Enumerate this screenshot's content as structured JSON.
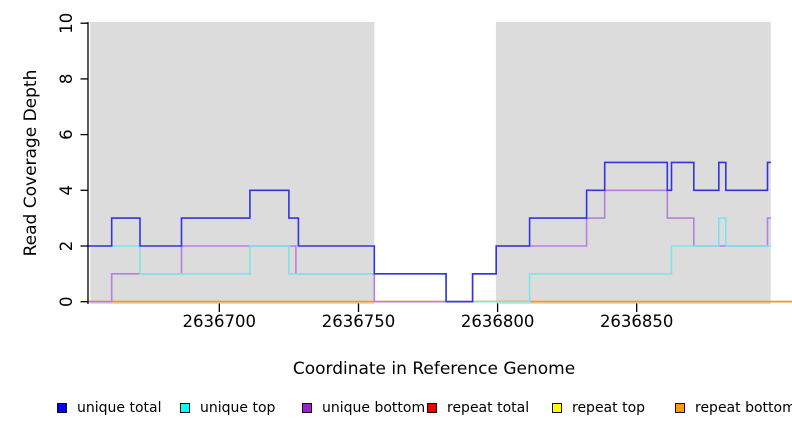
{
  "figure": {
    "y_axis_title": "Read Coverage Depth",
    "x_axis_title": "Coordinate in Reference Genome"
  },
  "chart_data": {
    "type": "line",
    "subtype": "step-post",
    "title": "",
    "xlabel": "Coordinate in Reference Genome",
    "ylabel": "Read Coverage Depth",
    "x_domain": [
      2636652.8,
      2636905.8
    ],
    "ylim": [
      0,
      10
    ],
    "x_ticks": [
      2636700,
      2636750,
      2636800,
      2636850
    ],
    "x_tick_labels": [
      "2636700",
      "2636750",
      "2636800",
      "2636850"
    ],
    "y_ticks": [
      0,
      2,
      4,
      6,
      8,
      10
    ],
    "y_tick_labels": [
      "0",
      "2",
      "4",
      "6",
      "8",
      "10"
    ],
    "grid": "off",
    "plot_background_color": "#dcdcdc",
    "shaded_regions": [
      [
        2636653.6,
        2636755.7
      ],
      [
        2636799.4,
        2636898.2
      ]
    ],
    "series": [
      {
        "name": "repeat total",
        "color": "#dd0000",
        "points": [
          [
            2636652.8,
            0
          ]
        ],
        "end_x": 2636905.8
      },
      {
        "name": "repeat top",
        "color": "#ffff00",
        "points": [
          [
            2636652.8,
            0
          ]
        ],
        "end_x": 2636905.8
      },
      {
        "name": "repeat bottom",
        "color": "#ff9912",
        "points": [
          [
            2636652.8,
            0
          ]
        ],
        "end_x": 2636905.8
      },
      {
        "name": "unique bottom",
        "color": "#b87fdf",
        "points": [
          [
            2636652.8,
            0
          ],
          [
            2636661.3,
            1
          ],
          [
            2636686.4,
            2
          ],
          [
            2636727.5,
            1
          ],
          [
            2636755.7,
            0
          ],
          [
            2636791,
            1
          ],
          [
            2636799.5,
            2
          ],
          [
            2636832,
            3
          ],
          [
            2636838.5,
            4
          ],
          [
            2636861,
            3
          ],
          [
            2636870.5,
            2
          ],
          [
            2636897,
            3
          ]
        ],
        "end_x": 2636898.2
      },
      {
        "name": "unique top",
        "color": "#7ce4ec",
        "points": [
          [
            2636652.8,
            2
          ],
          [
            2636671.5,
            1
          ],
          [
            2636711,
            2
          ],
          [
            2636725,
            1
          ],
          [
            2636781.5,
            0
          ],
          [
            2636811.5,
            1
          ],
          [
            2636862.5,
            2
          ],
          [
            2636879.5,
            3
          ],
          [
            2636882,
            2
          ]
        ],
        "end_x": 2636898.2
      },
      {
        "name": "unique total",
        "color": "#3434df",
        "points": [
          [
            2636652.8,
            2
          ],
          [
            2636661.3,
            3
          ],
          [
            2636671.5,
            2
          ],
          [
            2636686.4,
            3
          ],
          [
            2636711,
            4
          ],
          [
            2636725,
            3
          ],
          [
            2636728.4,
            2
          ],
          [
            2636755.7,
            1
          ],
          [
            2636781.5,
            0
          ],
          [
            2636791,
            1
          ],
          [
            2636799.5,
            2
          ],
          [
            2636811.5,
            3
          ],
          [
            2636832,
            4
          ],
          [
            2636838.5,
            5
          ],
          [
            2636861,
            4
          ],
          [
            2636862.5,
            5
          ],
          [
            2636870.5,
            4
          ],
          [
            2636879.5,
            5
          ],
          [
            2636882,
            4
          ],
          [
            2636897,
            5
          ]
        ],
        "end_x": 2636898.2
      }
    ]
  },
  "legend": {
    "items": [
      {
        "label": "unique total",
        "color": "#0000ee"
      },
      {
        "label": "unique top",
        "color": "#00ffff"
      },
      {
        "label": "unique bottom",
        "color": "#9a20d0"
      },
      {
        "label": "repeat total",
        "color": "#ee0000"
      },
      {
        "label": "repeat top",
        "color": "#ffff00"
      },
      {
        "label": "repeat bottom",
        "color": "#ff9912"
      }
    ]
  }
}
